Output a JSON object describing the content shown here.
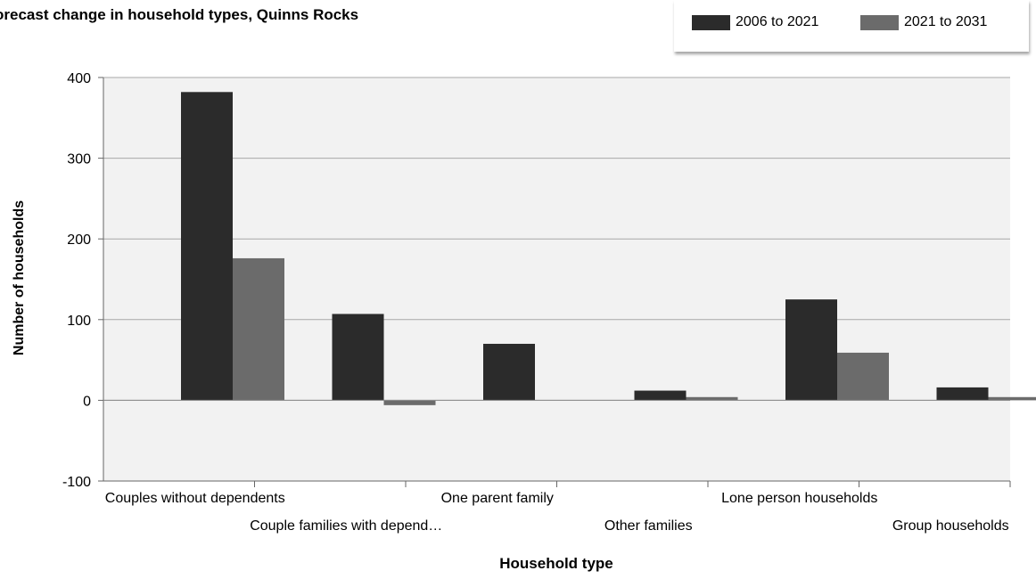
{
  "chart_data": {
    "type": "bar",
    "title": "orecast change in household types, Quinns Rocks",
    "xlabel": "Household type",
    "ylabel": "Number of households",
    "ylim": [
      -100,
      400
    ],
    "yticks": [
      "400",
      "300",
      "200",
      "100",
      "0",
      "-100"
    ],
    "ytick_values": [
      400,
      300,
      200,
      100,
      0,
      -100
    ],
    "categories": [
      "Couples without dependents",
      "Couple families with depend…",
      "One parent family",
      "Other families",
      "Lone person households",
      "Group households"
    ],
    "series": [
      {
        "name": "2006 to 2021",
        "color": "#2b2b2b",
        "values": [
          382,
          107,
          70,
          12,
          125,
          16
        ]
      },
      {
        "name": "2021 to 2031",
        "color": "#6b6b6b",
        "values": [
          176,
          -6,
          0,
          4,
          59,
          4
        ]
      }
    ],
    "grid": true,
    "legend_position": "top-right",
    "plot_background": "#f2f2f2"
  }
}
